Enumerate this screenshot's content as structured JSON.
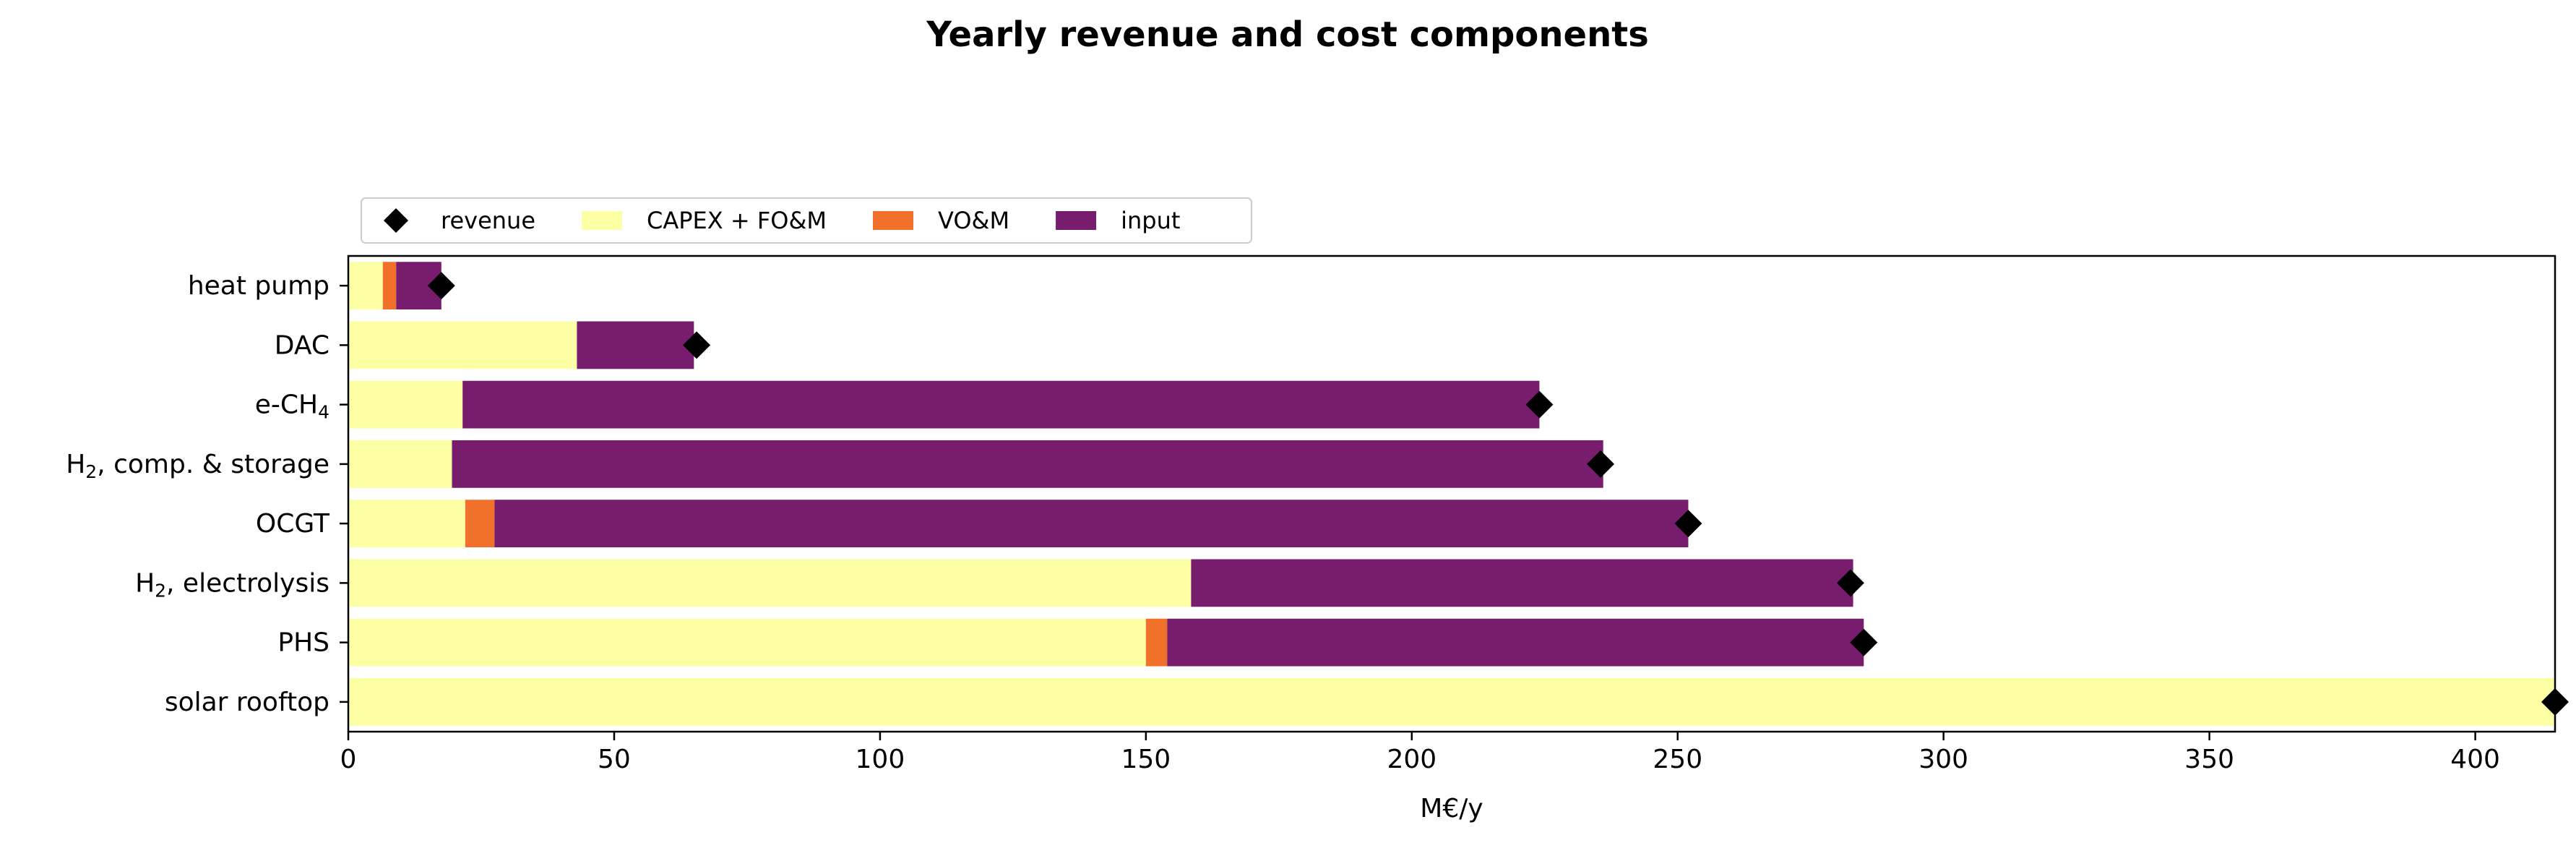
{
  "chart_data": {
    "type": "bar",
    "orientation": "horizontal",
    "stacked": true,
    "title": "Yearly revenue and cost components",
    "xlabel": "M€/y",
    "ylabel": "",
    "xlim": [
      0,
      415
    ],
    "xticks": [
      0,
      50,
      100,
      150,
      200,
      250,
      300,
      350,
      400
    ],
    "legend_position": "top-left, above plot",
    "categories": [
      {
        "base": "heat pump",
        "sub": ""
      },
      {
        "base": "DAC",
        "sub": ""
      },
      {
        "base": "e-CH",
        "sub": "4"
      },
      {
        "base": "H",
        "sub": "2",
        "suffix": ", comp. & storage"
      },
      {
        "base": "OCGT",
        "sub": ""
      },
      {
        "base": "H",
        "sub": "2",
        "suffix": ", electrolysis"
      },
      {
        "base": "PHS",
        "sub": ""
      },
      {
        "base": "solar rooftop",
        "sub": ""
      }
    ],
    "series": [
      {
        "name": "CAPEX + FO&M",
        "color": "#fcffa4",
        "values": [
          6.5,
          43,
          21.5,
          19.5,
          22,
          158.5,
          150,
          415
        ]
      },
      {
        "name": "VO&M",
        "color": "#f1702a",
        "values": [
          2.5,
          0,
          0,
          0,
          5.5,
          0,
          4,
          0
        ]
      },
      {
        "name": "input",
        "color": "#781c6d",
        "values": [
          8.5,
          22,
          202.5,
          216.5,
          224.5,
          124.5,
          131,
          0
        ]
      }
    ],
    "markers": {
      "name": "revenue",
      "color": "#000000",
      "shape": "diamond",
      "values": [
        17.5,
        65.5,
        224,
        235.5,
        252,
        282.5,
        285,
        415
      ]
    }
  }
}
